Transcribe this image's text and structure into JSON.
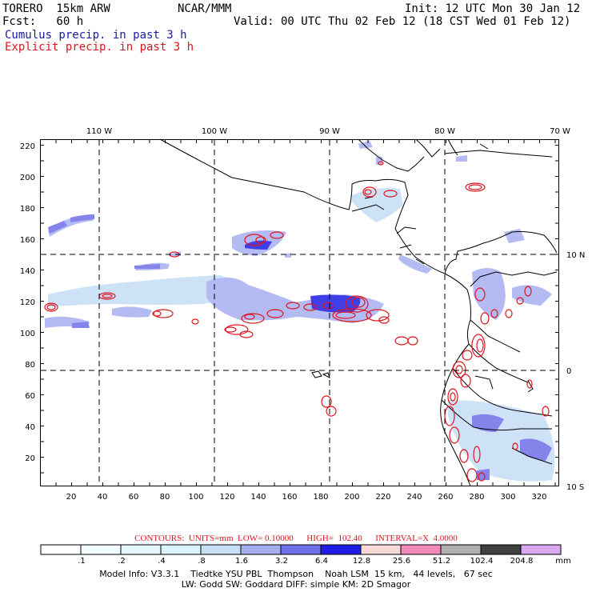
{
  "header": {
    "model": "TORERO  15km ARW",
    "org": "NCAR/MMM",
    "init": "Init: 12 UTC Mon 30 Jan 12",
    "fcst": "Fcst:   60 h",
    "valid": "Valid: 00 UTC Thu 02 Feb 12 (18 CST Wed 01 Feb 12)",
    "field1": "Cumulus precip. in past 3 h",
    "field2": "Explicit precip. in past 3 h",
    "field1_color": "#1a1aa0",
    "field2_color": "#e0141e"
  },
  "map": {
    "lon_labels": [
      "110 W",
      "100 W",
      "90 W",
      "80 W",
      "70 W"
    ],
    "lat_labels": [
      "10 N",
      "0",
      "10 S"
    ],
    "y_ticks": [
      "220",
      "200",
      "180",
      "160",
      "140",
      "120",
      "100",
      "80",
      "60",
      "40",
      "20"
    ],
    "x_ticks": [
      "20",
      "40",
      "60",
      "80",
      "100",
      "120",
      "140",
      "160",
      "180",
      "200",
      "220",
      "240",
      "260",
      "280",
      "300",
      "320"
    ],
    "cumulus_color": "#3c3cd8",
    "explicit_color": "#e0141e"
  },
  "legend": {
    "contours_text": "CONTOURS:  UNITS=mm  LOW= 0.10000      HIGH=  102.40      INTERVAL=X  4.0000",
    "values": [
      ".1",
      ".2",
      ".4",
      ".8",
      "1.6",
      "3.2",
      "6.4",
      "12.8",
      "25.6",
      "51.2",
      "102.4",
      "204.8"
    ],
    "colors": [
      "#ffffff",
      "#f2fbff",
      "#e6f7ff",
      "#d9f5fb",
      "#c6def6",
      "#a7aef0",
      "#6f6fe8",
      "#1e1ee6",
      "#f8d8d8",
      "#f08ab8",
      "#b0b0b0",
      "#404040",
      "#d8a8f0"
    ],
    "unit": "mm"
  },
  "footer": {
    "line1": "Model Info: V3.3.1    Tiedtke YSU PBL  Thompson    Noah LSM  15 km,   44 levels,   67 sec",
    "line2": "LW: Godd SW: Goddard DIFF: simple KM: 2D Smagor"
  }
}
